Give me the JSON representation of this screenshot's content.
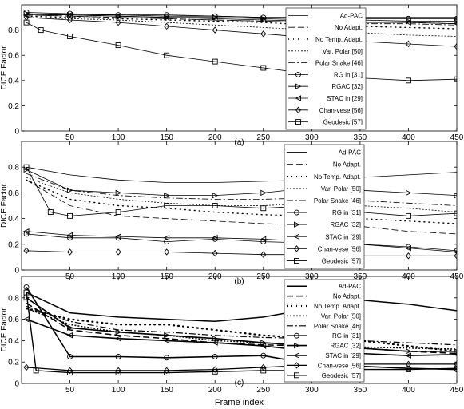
{
  "chart_data": [
    {
      "type": "line",
      "panel_label": "(a)",
      "ylabel": "DICE Factor",
      "xlabel": "",
      "xlim": [
        0,
        450
      ],
      "ylim": [
        0,
        1
      ],
      "xticks": [
        50,
        100,
        150,
        200,
        250,
        300,
        350,
        400,
        450
      ],
      "yticks": [
        0,
        0.2,
        0.4,
        0.6,
        0.8
      ],
      "legend_position": "top-right",
      "series": [
        {
          "name": "Ad-PAC",
          "color": "#000000",
          "x": [
            5,
            50,
            100,
            150,
            200,
            250,
            300,
            350,
            400,
            450
          ],
          "y": [
            0.93,
            0.92,
            0.92,
            0.91,
            0.91,
            0.9,
            0.9,
            0.9,
            0.9,
            0.9
          ]
        },
        {
          "name": "No Adapt.",
          "color": "#000000",
          "x": [
            5,
            50,
            100,
            150,
            200,
            250,
            300,
            350,
            400,
            450
          ],
          "y": [
            0.92,
            0.91,
            0.9,
            0.89,
            0.88,
            0.87,
            0.86,
            0.86,
            0.86,
            0.85
          ]
        },
        {
          "name": "No Temp. Adapt.",
          "color": "#000000",
          "x": [
            5,
            50,
            100,
            150,
            200,
            250,
            300,
            350,
            400,
            450
          ],
          "y": [
            0.91,
            0.9,
            0.89,
            0.88,
            0.87,
            0.86,
            0.84,
            0.83,
            0.82,
            0.81
          ]
        },
        {
          "name": "Var. Polar [50]",
          "color": "#000000",
          "x": [
            5,
            50,
            100,
            150,
            200,
            250,
            300,
            350,
            400,
            450
          ],
          "y": [
            0.9,
            0.89,
            0.88,
            0.86,
            0.84,
            0.82,
            0.8,
            0.78,
            0.76,
            0.75
          ]
        },
        {
          "name": "Polar Snake [46]",
          "color": "#000000",
          "x": [
            5,
            50,
            100,
            150,
            200,
            250,
            300,
            350,
            400,
            450
          ],
          "y": [
            0.92,
            0.91,
            0.9,
            0.89,
            0.88,
            0.87,
            0.86,
            0.85,
            0.85,
            0.84
          ]
        },
        {
          "name": "RG in [31]",
          "color": "#000000",
          "x": [
            5,
            50,
            100,
            150,
            200,
            250,
            300,
            350,
            400,
            450
          ],
          "y": [
            0.94,
            0.93,
            0.92,
            0.92,
            0.91,
            0.9,
            0.9,
            0.89,
            0.89,
            0.89
          ]
        },
        {
          "name": "RGAC [32]",
          "color": "#000000",
          "x": [
            5,
            50,
            100,
            150,
            200,
            250,
            300,
            350,
            400,
            450
          ],
          "y": [
            0.93,
            0.92,
            0.91,
            0.9,
            0.9,
            0.89,
            0.88,
            0.88,
            0.87,
            0.87
          ]
        },
        {
          "name": "STAC in [29]",
          "color": "#000000",
          "x": [
            5,
            50,
            100,
            150,
            200,
            250,
            300,
            350,
            400,
            450
          ],
          "y": [
            0.92,
            0.92,
            0.91,
            0.9,
            0.89,
            0.88,
            0.87,
            0.86,
            0.86,
            0.85
          ]
        },
        {
          "name": "Chan-vese [56]",
          "color": "#000000",
          "x": [
            5,
            50,
            100,
            150,
            200,
            250,
            300,
            350,
            400,
            450
          ],
          "y": [
            0.9,
            0.88,
            0.86,
            0.83,
            0.8,
            0.77,
            0.74,
            0.71,
            0.69,
            0.67
          ]
        },
        {
          "name": "Geodesic [57]",
          "color": "#000000",
          "x": [
            5,
            20,
            50,
            100,
            150,
            200,
            250,
            300,
            350,
            400,
            450
          ],
          "y": [
            0.86,
            0.8,
            0.75,
            0.68,
            0.6,
            0.55,
            0.5,
            0.45,
            0.42,
            0.4,
            0.41
          ]
        }
      ]
    },
    {
      "type": "line",
      "panel_label": "(b)",
      "ylabel": "DICE Factor",
      "xlabel": "",
      "xlim": [
        0,
        450
      ],
      "ylim": [
        0,
        1
      ],
      "xticks": [
        50,
        100,
        150,
        200,
        250,
        300,
        350,
        400,
        450
      ],
      "yticks": [
        0,
        0.2,
        0.4,
        0.6,
        0.8
      ],
      "legend_position": "top-right",
      "series": [
        {
          "name": "Ad-PAC",
          "color": "#000000",
          "x": [
            5,
            50,
            100,
            150,
            200,
            250,
            300,
            350,
            400,
            450
          ],
          "y": [
            0.8,
            0.74,
            0.7,
            0.68,
            0.68,
            0.69,
            0.7,
            0.72,
            0.74,
            0.76
          ]
        },
        {
          "name": "No Adapt.",
          "color": "#000000",
          "x": [
            5,
            50,
            100,
            150,
            200,
            250,
            300,
            350,
            400,
            450
          ],
          "y": [
            0.7,
            0.5,
            0.42,
            0.4,
            0.38,
            0.36,
            0.35,
            0.34,
            0.3,
            0.28
          ]
        },
        {
          "name": "No Temp. Adapt.",
          "color": "#000000",
          "x": [
            5,
            50,
            100,
            150,
            200,
            250,
            300,
            350,
            400,
            450
          ],
          "y": [
            0.7,
            0.55,
            0.5,
            0.48,
            0.45,
            0.43,
            0.42,
            0.4,
            0.38,
            0.36
          ]
        },
        {
          "name": "Var. Polar [50]",
          "color": "#000000",
          "x": [
            5,
            50,
            100,
            150,
            200,
            250,
            300,
            350,
            400,
            450
          ],
          "y": [
            0.72,
            0.6,
            0.55,
            0.52,
            0.5,
            0.5,
            0.52,
            0.5,
            0.48,
            0.45
          ]
        },
        {
          "name": "Polar Snake [46]",
          "color": "#000000",
          "x": [
            5,
            50,
            100,
            150,
            200,
            250,
            300,
            350,
            400,
            450
          ],
          "y": [
            0.75,
            0.62,
            0.58,
            0.56,
            0.55,
            0.55,
            0.56,
            0.54,
            0.52,
            0.5
          ]
        },
        {
          "name": "RG in [31]",
          "color": "#000000",
          "x": [
            5,
            50,
            100,
            150,
            200,
            250,
            300,
            350,
            400,
            450
          ],
          "y": [
            0.28,
            0.25,
            0.25,
            0.22,
            0.24,
            0.22,
            0.21,
            0.2,
            0.18,
            0.15
          ]
        },
        {
          "name": "RGAC [32]",
          "color": "#000000",
          "x": [
            5,
            50,
            100,
            150,
            200,
            250,
            300,
            350,
            400,
            450
          ],
          "y": [
            0.78,
            0.62,
            0.6,
            0.58,
            0.58,
            0.6,
            0.64,
            0.62,
            0.6,
            0.58
          ]
        },
        {
          "name": "STAC in [29]",
          "color": "#000000",
          "x": [
            5,
            50,
            100,
            150,
            200,
            250,
            300,
            350,
            400,
            450
          ],
          "y": [
            0.3,
            0.27,
            0.26,
            0.25,
            0.25,
            0.24,
            0.22,
            0.2,
            0.17,
            0.14
          ]
        },
        {
          "name": "Chan-vese [56]",
          "color": "#000000",
          "x": [
            5,
            50,
            100,
            150,
            200,
            250,
            300,
            350,
            400,
            450
          ],
          "y": [
            0.15,
            0.14,
            0.14,
            0.14,
            0.13,
            0.12,
            0.12,
            0.11,
            0.11,
            0.11
          ]
        },
        {
          "name": "Geodesic [57]",
          "color": "#000000",
          "x": [
            5,
            30,
            50,
            100,
            150,
            200,
            250,
            300,
            350,
            400,
            450
          ],
          "y": [
            0.8,
            0.45,
            0.42,
            0.45,
            0.5,
            0.5,
            0.48,
            0.5,
            0.45,
            0.42,
            0.44
          ]
        }
      ]
    },
    {
      "type": "line",
      "panel_label": "(c)",
      "ylabel": "DICE Factor",
      "xlabel": "Frame index",
      "xlim": [
        0,
        450
      ],
      "ylim": [
        0,
        1
      ],
      "xticks": [
        50,
        100,
        150,
        200,
        250,
        300,
        350,
        400,
        450
      ],
      "yticks": [
        0,
        0.2,
        0.4,
        0.6,
        0.8
      ],
      "legend_position": "top-right",
      "series": [
        {
          "name": "Ad-PAC",
          "color": "#000000",
          "x": [
            5,
            50,
            100,
            150,
            200,
            250,
            300,
            350,
            400,
            450
          ],
          "y": [
            0.85,
            0.66,
            0.62,
            0.6,
            0.58,
            0.62,
            0.7,
            0.78,
            0.74,
            0.68
          ]
        },
        {
          "name": "No Adapt.",
          "color": "#000000",
          "x": [
            5,
            50,
            100,
            150,
            200,
            250,
            300,
            350,
            400,
            450
          ],
          "y": [
            0.75,
            0.5,
            0.45,
            0.42,
            0.38,
            0.36,
            0.35,
            0.33,
            0.3,
            0.28
          ]
        },
        {
          "name": "No Temp. Adapt.",
          "color": "#000000",
          "x": [
            5,
            50,
            100,
            150,
            200,
            250,
            300,
            350,
            400,
            450
          ],
          "y": [
            0.7,
            0.6,
            0.55,
            0.55,
            0.5,
            0.45,
            0.42,
            0.4,
            0.35,
            0.3
          ]
        },
        {
          "name": "Var. Polar [50]",
          "color": "#000000",
          "x": [
            5,
            50,
            100,
            150,
            200,
            250,
            300,
            350,
            400,
            450
          ],
          "y": [
            0.7,
            0.55,
            0.48,
            0.45,
            0.4,
            0.38,
            0.36,
            0.34,
            0.33,
            0.32
          ]
        },
        {
          "name": "Polar Snake [46]",
          "color": "#000000",
          "x": [
            5,
            50,
            100,
            150,
            200,
            250,
            300,
            350,
            400,
            450
          ],
          "y": [
            0.72,
            0.58,
            0.5,
            0.48,
            0.45,
            0.43,
            0.42,
            0.4,
            0.38,
            0.36
          ]
        },
        {
          "name": "RG in [31]",
          "color": "#000000",
          "x": [
            5,
            50,
            100,
            150,
            200,
            250,
            300,
            350,
            400,
            450
          ],
          "y": [
            0.9,
            0.25,
            0.25,
            0.24,
            0.25,
            0.26,
            0.18,
            0.16,
            0.14,
            0.13
          ]
        },
        {
          "name": "RGAC [32]",
          "color": "#000000",
          "x": [
            5,
            50,
            100,
            150,
            200,
            250,
            300,
            350,
            400,
            450
          ],
          "y": [
            0.8,
            0.52,
            0.48,
            0.45,
            0.42,
            0.38,
            0.35,
            0.33,
            0.3,
            0.3
          ]
        },
        {
          "name": "STAC in [29]",
          "color": "#000000",
          "x": [
            5,
            50,
            100,
            150,
            200,
            250,
            300,
            350,
            400,
            450
          ],
          "y": [
            0.6,
            0.45,
            0.42,
            0.4,
            0.38,
            0.35,
            0.3,
            0.28,
            0.26,
            0.27
          ]
        },
        {
          "name": "Chan-vese [56]",
          "color": "#000000",
          "x": [
            5,
            50,
            100,
            150,
            200,
            250,
            300,
            350,
            400,
            450
          ],
          "y": [
            0.15,
            0.12,
            0.12,
            0.12,
            0.13,
            0.15,
            0.17,
            0.18,
            0.18,
            0.18
          ]
        },
        {
          "name": "Geodesic [57]",
          "color": "#000000",
          "x": [
            5,
            15,
            50,
            100,
            150,
            200,
            250,
            300,
            350,
            400,
            450
          ],
          "y": [
            0.85,
            0.12,
            0.1,
            0.1,
            0.1,
            0.11,
            0.12,
            0.12,
            0.13,
            0.13,
            0.14
          ]
        }
      ]
    }
  ]
}
